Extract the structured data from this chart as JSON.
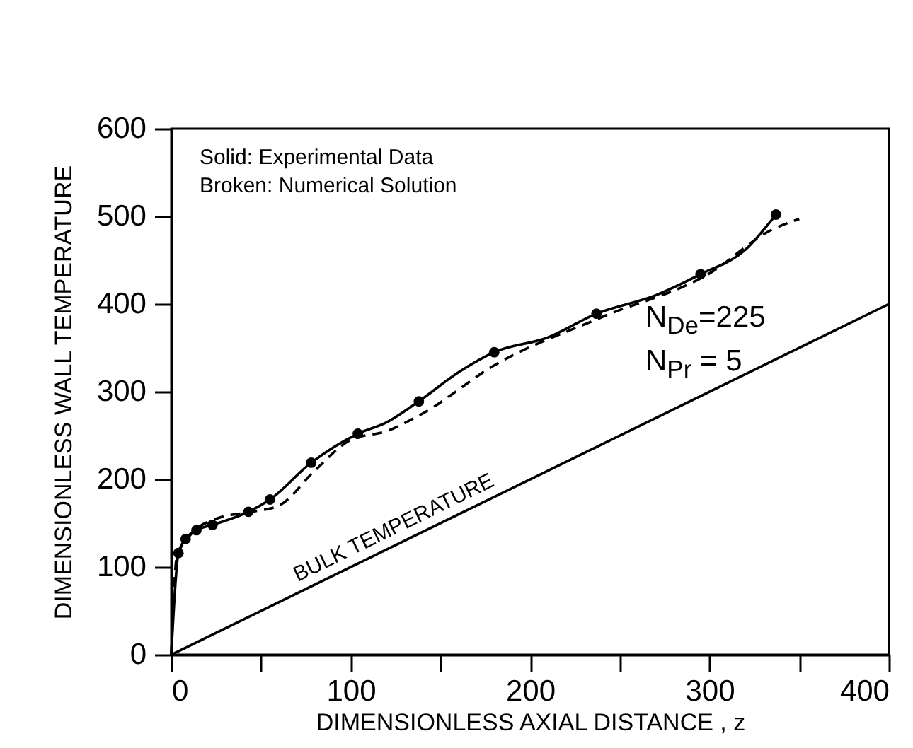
{
  "chart_data": {
    "type": "line",
    "xlabel": "DIMENSIONLESS  AXIAL  DISTANCE , z",
    "ylabel": "DIMENSIONLESS WALL TEMPERATURE",
    "xlim": [
      0,
      400
    ],
    "ylim": [
      0,
      600
    ],
    "xticks": [
      0,
      {
        "value": 50,
        "label": null
      },
      100,
      {
        "value": 150,
        "label": null
      },
      200,
      {
        "value": 250,
        "label": null
      },
      300,
      {
        "value": 350,
        "label": null
      },
      400
    ],
    "yticks": [
      0,
      100,
      200,
      300,
      400,
      500,
      600
    ],
    "annotations": [
      "Solid: Experimental Data",
      "Broken: Numerical Solution",
      "N$_{De}$=225",
      "N$_{Pr}$ = 5"
    ],
    "series": [
      {
        "type": "line",
        "color": "#000000",
        "line_style": "solid",
        "x": [
          0,
          4,
          8,
          14,
          23,
          43,
          55,
          78,
          104,
          120,
          138,
          160,
          180,
          210,
          237,
          270,
          295,
          320,
          337
        ],
        "values": [
          0,
          116,
          132,
          142,
          148,
          163,
          177,
          219,
          252,
          265,
          289,
          322,
          345,
          362,
          389,
          410,
          434,
          462,
          502
        ]
      },
      {
        "type": "scatter",
        "color": "#000000",
        "marker": "circle",
        "x": [
          4,
          8,
          14,
          23,
          43,
          55,
          78,
          104,
          138,
          180,
          237,
          295,
          337
        ],
        "values": [
          116,
          132,
          142,
          148,
          163,
          177,
          219,
          252,
          289,
          345,
          389,
          434,
          502
        ]
      },
      {
        "type": "line",
        "color": "#000000",
        "line_style": "dashed",
        "x": [
          0,
          3,
          10,
          25,
          45,
          60,
          80,
          100,
          120,
          140,
          180,
          240,
          300,
          335,
          350
        ],
        "values": [
          0,
          110,
          135,
          155,
          163,
          170,
          210,
          245,
          255,
          275,
          330,
          385,
          435,
          485,
          497
        ]
      },
      {
        "type": "line",
        "name": "BULK TEMPERATURE",
        "color": "#000000",
        "line_style": "solid",
        "x": [
          0,
          400
        ],
        "values": [
          0,
          400
        ]
      }
    ]
  }
}
